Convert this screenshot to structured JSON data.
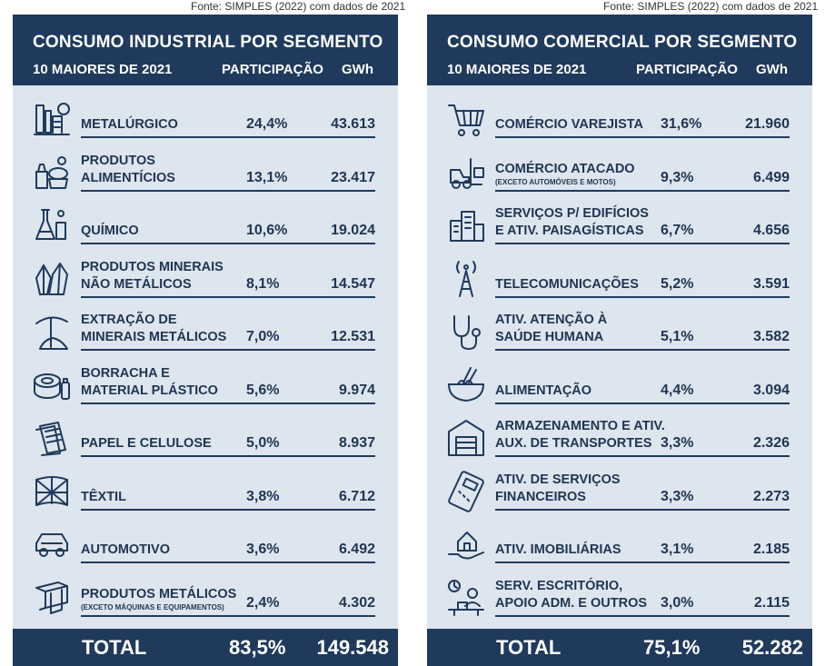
{
  "source": "Fonte: SIMPLES (2022) com dados de 2021",
  "industrial": {
    "title": "CONSUMO INDUSTRIAL POR SEGMENTO",
    "subtitle": "10 MAIORES DE 2021",
    "col_pct": "PARTICIPAÇÃO",
    "col_gwh": "GWh",
    "rows": [
      {
        "label1": "METALÚRGICO",
        "label2": "",
        "note": "",
        "pct": "24,4%",
        "gwh": "43.613",
        "icon": "steel-mill-icon"
      },
      {
        "label1": "PRODUTOS",
        "label2": "ALIMENTÍCIOS",
        "note": "",
        "pct": "13,1%",
        "gwh": "23.417",
        "icon": "food-products-icon"
      },
      {
        "label1": "QUÍMICO",
        "label2": "",
        "note": "",
        "pct": "10,6%",
        "gwh": "19.024",
        "icon": "chemistry-flask-icon"
      },
      {
        "label1": "PRODUTOS MINERAIS",
        "label2": "NÃO METÁLICOS",
        "note": "",
        "pct": "8,1%",
        "gwh": "14.547",
        "icon": "crystal-icon"
      },
      {
        "label1": "EXTRAÇÃO DE",
        "label2": "MINERAIS METÁLICOS",
        "note": "",
        "pct": "7,0%",
        "gwh": "12.531",
        "icon": "pickaxe-icon"
      },
      {
        "label1": "BORRACHA E",
        "label2": "MATERIAL PLÁSTICO",
        "note": "",
        "pct": "5,6%",
        "gwh": "9.974",
        "icon": "rubber-plastic-icon"
      },
      {
        "label1": "PAPEL E CELULOSE",
        "label2": "",
        "note": "",
        "pct": "5,0%",
        "gwh": "8.937",
        "icon": "paper-stack-icon"
      },
      {
        "label1": "TÊXTIL",
        "label2": "",
        "note": "",
        "pct": "3,8%",
        "gwh": "6.712",
        "icon": "fabric-icon"
      },
      {
        "label1": "AUTOMOTIVO",
        "label2": "",
        "note": "",
        "pct": "3,6%",
        "gwh": "6.492",
        "icon": "car-icon"
      },
      {
        "label1": "PRODUTOS METÁLICOS",
        "label2": "",
        "note": "(EXCETO MÁQUINAS E EQUIPAMENTOS)",
        "pct": "2,4%",
        "gwh": "4.302",
        "icon": "steel-beam-icon"
      }
    ],
    "total_label": "TOTAL",
    "total_pct": "83,5%",
    "total_gwh": "149.548"
  },
  "commercial": {
    "title": "CONSUMO COMERCIAL POR SEGMENTO",
    "subtitle": "10 MAIORES DE 2021",
    "col_pct": "PARTICIPAÇÃO",
    "col_gwh": "GWh",
    "rows": [
      {
        "label1": "COMÉRCIO VAREJISTA",
        "label2": "",
        "note": "",
        "pct": "31,6%",
        "gwh": "21.960",
        "icon": "shopping-cart-icon"
      },
      {
        "label1": "COMÉRCIO ATACADO",
        "label2": "",
        "note": "(EXCETO AUTOMÓVEIS E MOTOS)",
        "pct": "9,3%",
        "gwh": "6.499",
        "icon": "forklift-icon"
      },
      {
        "label1": "SERVIÇOS P/ EDIFÍCIOS",
        "label2": "E ATIV. PAISAGÍSTICAS",
        "note": "",
        "pct": "6,7%",
        "gwh": "4.656",
        "icon": "buildings-icon"
      },
      {
        "label1": "TELECOMUNICAÇÕES",
        "label2": "",
        "note": "",
        "pct": "5,2%",
        "gwh": "3.591",
        "icon": "antenna-tower-icon"
      },
      {
        "label1": "ATIV. ATENÇÃO À",
        "label2": "SAÚDE HUMANA",
        "note": "",
        "pct": "5,1%",
        "gwh": "3.582",
        "icon": "stethoscope-icon"
      },
      {
        "label1": "ALIMENTAÇÃO",
        "label2": "",
        "note": "",
        "pct": "4,4%",
        "gwh": "3.094",
        "icon": "noodle-bowl-icon"
      },
      {
        "label1": "ARMAZENAMENTO E ATIV.",
        "label2": "AUX. DE TRANSPORTES",
        "note": "",
        "pct": "3,3%",
        "gwh": "2.326",
        "icon": "warehouse-icon"
      },
      {
        "label1": "ATIV. DE SERVIÇOS",
        "label2": "FINANCEIROS",
        "note": "",
        "pct": "3,3%",
        "gwh": "2.273",
        "icon": "card-machine-icon"
      },
      {
        "label1": "ATIV. IMOBILIÁRIAS",
        "label2": "",
        "note": "",
        "pct": "3,1%",
        "gwh": "2.185",
        "icon": "house-in-hand-icon"
      },
      {
        "label1": "SERV. ESCRITÓRIO,",
        "label2": "APOIO ADM. E OUTROS",
        "note": "",
        "pct": "3,0%",
        "gwh": "2.115",
        "icon": "office-worker-icon"
      }
    ],
    "total_label": "TOTAL",
    "total_pct": "75,1%",
    "total_gwh": "52.282"
  }
}
